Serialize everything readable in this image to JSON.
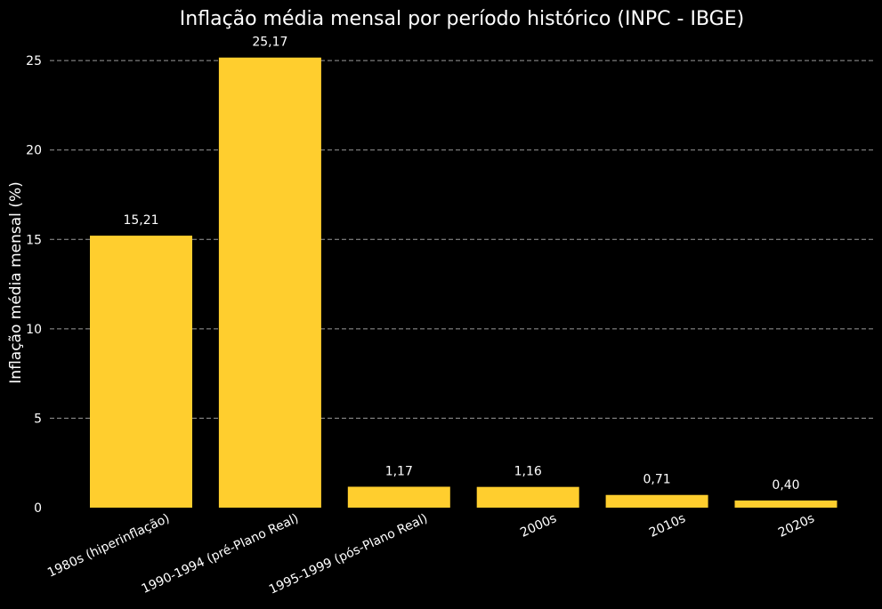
{
  "chart_data": {
    "type": "bar",
    "title": "Inflação média mensal por período histórico (INPC - IBGE)",
    "xlabel": "",
    "ylabel": "Inflação média mensal (%)",
    "categories": [
      "1980s (hiperinflação)",
      "1990-1994 (pré-Plano Real)",
      "1995-1999 (pós-Plano Real)",
      "2000s",
      "2010s",
      "2020s"
    ],
    "values": [
      15.21,
      25.17,
      1.17,
      1.16,
      0.71,
      0.4
    ],
    "value_labels": [
      "15,21",
      "25,17",
      "1,17",
      "1,16",
      "0,71",
      "0,40"
    ],
    "yticks": [
      0,
      5,
      10,
      15,
      20,
      25
    ],
    "ylim": [
      0,
      26.4
    ],
    "grid": true,
    "bar_color": "#FFCE2E",
    "background": "#000000",
    "text_color": "#FFFFFF"
  }
}
